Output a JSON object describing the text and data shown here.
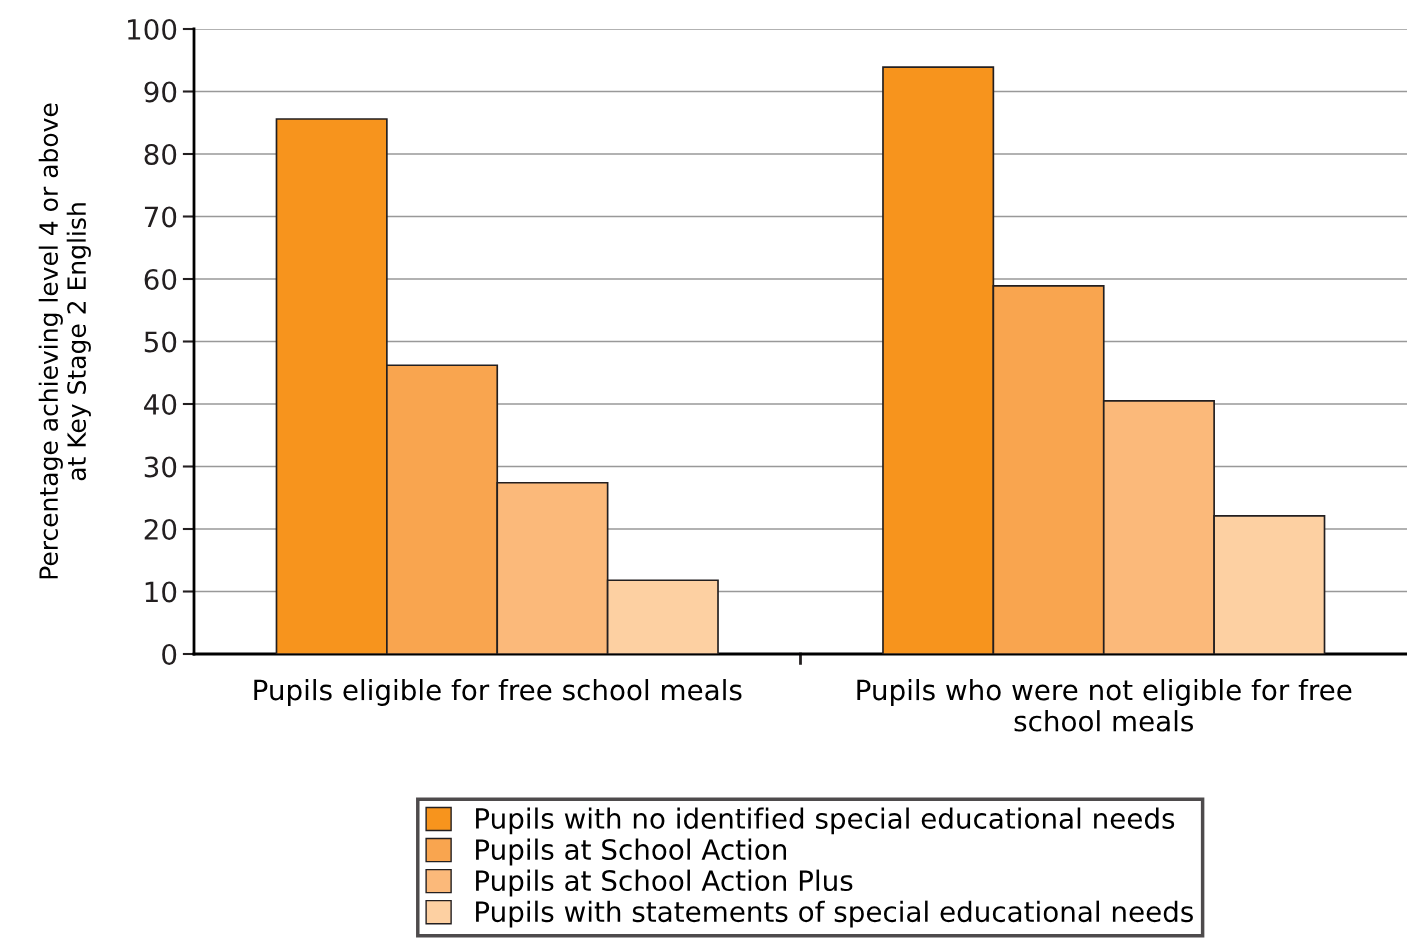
{
  "chart_data": {
    "type": "bar",
    "ylabel": "Percentage achieving level 4 or above\nat Key Stage 2 English",
    "categories": [
      "Pupils eligible for free school meals",
      "Pupils who were not eligible for free\nschool meals"
    ],
    "series": [
      {
        "name": "Pupils with no identified special educational needs",
        "color": "#f7941d",
        "values": [
          85.6,
          93.9
        ]
      },
      {
        "name": "Pupils at School Action",
        "color": "#f9a54f",
        "values": [
          46.2,
          58.9
        ]
      },
      {
        "name": "Pupils at School Action Plus",
        "color": "#fbb97a",
        "values": [
          27.4,
          40.5
        ]
      },
      {
        "name": "Pupils with statements of special educational needs",
        "color": "#fdd0a2",
        "values": [
          11.8,
          22.1
        ]
      }
    ],
    "ylim": [
      0,
      100
    ],
    "yticks": [
      0,
      10,
      20,
      30,
      40,
      50,
      60,
      70,
      80,
      90,
      100
    ],
    "grid": "y",
    "legend": "bottom"
  }
}
